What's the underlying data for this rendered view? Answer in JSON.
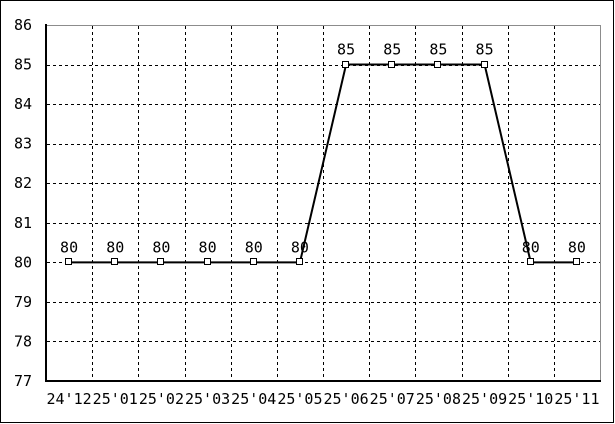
{
  "chart_data": {
    "type": "line",
    "title": "",
    "xlabel": "",
    "ylabel": "",
    "categories": [
      "24'12",
      "25'01",
      "25'02",
      "25'03",
      "25'04",
      "25'05",
      "25'06",
      "25'07",
      "25'08",
      "25'09",
      "25'10",
      "25'11"
    ],
    "values": [
      80,
      80,
      80,
      80,
      80,
      80,
      85,
      85,
      85,
      85,
      80,
      80
    ],
    "point_labels": [
      "80",
      "80",
      "80",
      "80",
      "80",
      "80",
      "85",
      "85",
      "85",
      "85",
      "80",
      "80"
    ],
    "ylim": [
      77,
      86
    ],
    "yticks": [
      77,
      78,
      79,
      80,
      81,
      82,
      83,
      84,
      85,
      86
    ],
    "grid": "dashed",
    "legend": "none",
    "marker": "open-square",
    "colors": {
      "line": "#000000",
      "marker_fill": "#ffffff",
      "marker_stroke": "#000000",
      "grid": "#000000",
      "axis": "#000000",
      "plot_border_top_right": "#8c8c8c",
      "outer_border": "#000000",
      "background": "#ffffff",
      "text": "#000000"
    }
  }
}
